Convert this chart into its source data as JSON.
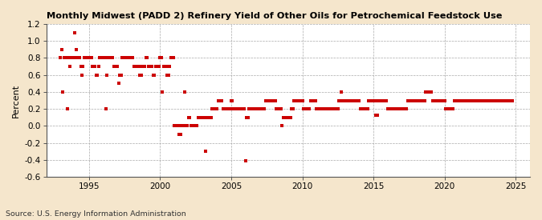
{
  "title": "Monthly Midwest (PADD 2) Refinery Yield of Other Oils for Petrochemical Feedstock Use",
  "ylabel": "Percent",
  "source": "Source: U.S. Energy Information Administration",
  "xlim": [
    1992.0,
    2026.0
  ],
  "ylim": [
    -0.6,
    1.2
  ],
  "yticks": [
    -0.6,
    -0.4,
    -0.2,
    0.0,
    0.2,
    0.4,
    0.6,
    0.8,
    1.0,
    1.2
  ],
  "xticks": [
    1995,
    2000,
    2005,
    2010,
    2015,
    2020,
    2025
  ],
  "fig_background_color": "#f5e6cc",
  "plot_bg_color": "#ffffff",
  "dot_color": "#cc0000",
  "dot_size": 6,
  "grid_color": "#aaaaaa",
  "data_points": [
    [
      1993.0,
      0.8
    ],
    [
      1993.08,
      0.9
    ],
    [
      1993.17,
      0.4
    ],
    [
      1993.25,
      0.8
    ],
    [
      1993.33,
      0.8
    ],
    [
      1993.42,
      0.8
    ],
    [
      1993.5,
      0.2
    ],
    [
      1993.58,
      0.8
    ],
    [
      1993.67,
      0.7
    ],
    [
      1993.75,
      0.8
    ],
    [
      1993.83,
      0.8
    ],
    [
      1993.92,
      0.8
    ],
    [
      1994.0,
      1.1
    ],
    [
      1994.08,
      0.9
    ],
    [
      1994.17,
      0.8
    ],
    [
      1994.25,
      0.8
    ],
    [
      1994.33,
      0.8
    ],
    [
      1994.42,
      0.7
    ],
    [
      1994.5,
      0.6
    ],
    [
      1994.58,
      0.7
    ],
    [
      1994.67,
      0.8
    ],
    [
      1994.75,
      0.8
    ],
    [
      1994.83,
      0.8
    ],
    [
      1994.92,
      0.8
    ],
    [
      1995.0,
      0.8
    ],
    [
      1995.08,
      0.8
    ],
    [
      1995.17,
      0.8
    ],
    [
      1995.25,
      0.7
    ],
    [
      1995.33,
      0.7
    ],
    [
      1995.42,
      0.7
    ],
    [
      1995.5,
      0.6
    ],
    [
      1995.58,
      0.6
    ],
    [
      1995.67,
      0.7
    ],
    [
      1995.75,
      0.8
    ],
    [
      1995.83,
      0.8
    ],
    [
      1995.92,
      0.8
    ],
    [
      1996.0,
      0.8
    ],
    [
      1996.08,
      0.8
    ],
    [
      1996.17,
      0.2
    ],
    [
      1996.25,
      0.6
    ],
    [
      1996.33,
      0.8
    ],
    [
      1996.42,
      0.8
    ],
    [
      1996.5,
      0.8
    ],
    [
      1996.58,
      0.8
    ],
    [
      1996.67,
      0.8
    ],
    [
      1996.75,
      0.7
    ],
    [
      1996.83,
      0.7
    ],
    [
      1996.92,
      0.7
    ],
    [
      1997.0,
      0.7
    ],
    [
      1997.08,
      0.5
    ],
    [
      1997.17,
      0.6
    ],
    [
      1997.25,
      0.6
    ],
    [
      1997.33,
      0.8
    ],
    [
      1997.42,
      0.8
    ],
    [
      1997.5,
      0.8
    ],
    [
      1997.58,
      0.8
    ],
    [
      1997.67,
      0.8
    ],
    [
      1997.75,
      0.8
    ],
    [
      1997.83,
      0.8
    ],
    [
      1997.92,
      0.8
    ],
    [
      1998.0,
      0.8
    ],
    [
      1998.08,
      0.8
    ],
    [
      1998.17,
      0.7
    ],
    [
      1998.25,
      0.7
    ],
    [
      1998.33,
      0.7
    ],
    [
      1998.42,
      0.7
    ],
    [
      1998.5,
      0.7
    ],
    [
      1998.58,
      0.6
    ],
    [
      1998.67,
      0.6
    ],
    [
      1998.75,
      0.7
    ],
    [
      1998.83,
      0.7
    ],
    [
      1998.92,
      0.7
    ],
    [
      1999.0,
      0.8
    ],
    [
      1999.08,
      0.8
    ],
    [
      1999.17,
      0.7
    ],
    [
      1999.25,
      0.7
    ],
    [
      1999.33,
      0.7
    ],
    [
      1999.42,
      0.7
    ],
    [
      1999.5,
      0.6
    ],
    [
      1999.58,
      0.6
    ],
    [
      1999.67,
      0.7
    ],
    [
      1999.75,
      0.7
    ],
    [
      1999.83,
      0.7
    ],
    [
      1999.92,
      0.7
    ],
    [
      2000.0,
      0.8
    ],
    [
      2000.08,
      0.8
    ],
    [
      2000.17,
      0.4
    ],
    [
      2000.25,
      0.7
    ],
    [
      2000.33,
      0.7
    ],
    [
      2000.42,
      0.7
    ],
    [
      2000.5,
      0.6
    ],
    [
      2000.58,
      0.6
    ],
    [
      2000.67,
      0.7
    ],
    [
      2000.75,
      0.8
    ],
    [
      2000.83,
      0.8
    ],
    [
      2000.92,
      0.8
    ],
    [
      2001.0,
      0.0
    ],
    [
      2001.08,
      0.0
    ],
    [
      2001.17,
      0.0
    ],
    [
      2001.25,
      0.0
    ],
    [
      2001.33,
      -0.1
    ],
    [
      2001.42,
      -0.1
    ],
    [
      2001.5,
      0.0
    ],
    [
      2001.58,
      0.0
    ],
    [
      2001.67,
      0.0
    ],
    [
      2001.75,
      0.4
    ],
    [
      2001.83,
      0.0
    ],
    [
      2001.92,
      0.0
    ],
    [
      2002.0,
      0.1
    ],
    [
      2002.08,
      0.1
    ],
    [
      2002.17,
      0.0
    ],
    [
      2002.25,
      0.0
    ],
    [
      2002.33,
      0.0
    ],
    [
      2002.42,
      0.0
    ],
    [
      2002.5,
      0.0
    ],
    [
      2002.58,
      0.0
    ],
    [
      2002.67,
      0.1
    ],
    [
      2002.75,
      0.1
    ],
    [
      2002.83,
      0.1
    ],
    [
      2002.92,
      0.1
    ],
    [
      2003.0,
      0.1
    ],
    [
      2003.08,
      0.1
    ],
    [
      2003.17,
      -0.3
    ],
    [
      2003.25,
      0.1
    ],
    [
      2003.33,
      0.1
    ],
    [
      2003.42,
      0.1
    ],
    [
      2003.5,
      0.1
    ],
    [
      2003.58,
      0.1
    ],
    [
      2003.67,
      0.2
    ],
    [
      2003.75,
      0.2
    ],
    [
      2003.83,
      0.2
    ],
    [
      2003.92,
      0.2
    ],
    [
      2004.0,
      0.2
    ],
    [
      2004.08,
      0.3
    ],
    [
      2004.17,
      0.3
    ],
    [
      2004.25,
      0.3
    ],
    [
      2004.33,
      0.3
    ],
    [
      2004.42,
      0.2
    ],
    [
      2004.5,
      0.2
    ],
    [
      2004.58,
      0.2
    ],
    [
      2004.67,
      0.2
    ],
    [
      2004.75,
      0.2
    ],
    [
      2004.83,
      0.2
    ],
    [
      2004.92,
      0.2
    ],
    [
      2005.0,
      0.3
    ],
    [
      2005.08,
      0.3
    ],
    [
      2005.17,
      0.2
    ],
    [
      2005.25,
      0.2
    ],
    [
      2005.33,
      0.2
    ],
    [
      2005.42,
      0.2
    ],
    [
      2005.5,
      0.2
    ],
    [
      2005.58,
      0.2
    ],
    [
      2005.67,
      0.2
    ],
    [
      2005.75,
      0.2
    ],
    [
      2005.83,
      0.2
    ],
    [
      2005.92,
      0.2
    ],
    [
      2006.0,
      -0.41
    ],
    [
      2006.08,
      0.1
    ],
    [
      2006.17,
      0.1
    ],
    [
      2006.25,
      0.2
    ],
    [
      2006.33,
      0.2
    ],
    [
      2006.42,
      0.2
    ],
    [
      2006.5,
      0.2
    ],
    [
      2006.58,
      0.2
    ],
    [
      2006.67,
      0.2
    ],
    [
      2006.75,
      0.2
    ],
    [
      2006.83,
      0.2
    ],
    [
      2006.92,
      0.2
    ],
    [
      2007.0,
      0.2
    ],
    [
      2007.08,
      0.2
    ],
    [
      2007.17,
      0.2
    ],
    [
      2007.25,
      0.2
    ],
    [
      2007.33,
      0.2
    ],
    [
      2007.42,
      0.3
    ],
    [
      2007.5,
      0.3
    ],
    [
      2007.58,
      0.3
    ],
    [
      2007.67,
      0.3
    ],
    [
      2007.75,
      0.3
    ],
    [
      2007.83,
      0.3
    ],
    [
      2007.92,
      0.3
    ],
    [
      2008.0,
      0.3
    ],
    [
      2008.08,
      0.3
    ],
    [
      2008.17,
      0.2
    ],
    [
      2008.25,
      0.2
    ],
    [
      2008.33,
      0.2
    ],
    [
      2008.42,
      0.2
    ],
    [
      2008.5,
      0.2
    ],
    [
      2008.58,
      0.0
    ],
    [
      2008.67,
      0.1
    ],
    [
      2008.75,
      0.1
    ],
    [
      2008.83,
      0.1
    ],
    [
      2008.92,
      0.1
    ],
    [
      2009.0,
      0.1
    ],
    [
      2009.08,
      0.1
    ],
    [
      2009.17,
      0.1
    ],
    [
      2009.25,
      0.2
    ],
    [
      2009.33,
      0.2
    ],
    [
      2009.42,
      0.3
    ],
    [
      2009.5,
      0.3
    ],
    [
      2009.58,
      0.3
    ],
    [
      2009.67,
      0.3
    ],
    [
      2009.75,
      0.3
    ],
    [
      2009.83,
      0.3
    ],
    [
      2009.92,
      0.3
    ],
    [
      2010.0,
      0.3
    ],
    [
      2010.08,
      0.2
    ],
    [
      2010.17,
      0.2
    ],
    [
      2010.25,
      0.2
    ],
    [
      2010.33,
      0.2
    ],
    [
      2010.42,
      0.2
    ],
    [
      2010.5,
      0.2
    ],
    [
      2010.58,
      0.3
    ],
    [
      2010.67,
      0.3
    ],
    [
      2010.75,
      0.3
    ],
    [
      2010.83,
      0.3
    ],
    [
      2010.92,
      0.3
    ],
    [
      2011.0,
      0.2
    ],
    [
      2011.08,
      0.2
    ],
    [
      2011.17,
      0.2
    ],
    [
      2011.25,
      0.2
    ],
    [
      2011.33,
      0.2
    ],
    [
      2011.42,
      0.2
    ],
    [
      2011.5,
      0.2
    ],
    [
      2011.58,
      0.2
    ],
    [
      2011.67,
      0.2
    ],
    [
      2011.75,
      0.2
    ],
    [
      2011.83,
      0.2
    ],
    [
      2011.92,
      0.2
    ],
    [
      2012.0,
      0.2
    ],
    [
      2012.08,
      0.2
    ],
    [
      2012.17,
      0.2
    ],
    [
      2012.25,
      0.2
    ],
    [
      2012.33,
      0.2
    ],
    [
      2012.42,
      0.2
    ],
    [
      2012.5,
      0.2
    ],
    [
      2012.58,
      0.3
    ],
    [
      2012.67,
      0.3
    ],
    [
      2012.75,
      0.4
    ],
    [
      2012.83,
      0.3
    ],
    [
      2012.92,
      0.3
    ],
    [
      2013.0,
      0.3
    ],
    [
      2013.08,
      0.3
    ],
    [
      2013.17,
      0.3
    ],
    [
      2013.25,
      0.3
    ],
    [
      2013.33,
      0.3
    ],
    [
      2013.42,
      0.3
    ],
    [
      2013.5,
      0.3
    ],
    [
      2013.58,
      0.3
    ],
    [
      2013.67,
      0.3
    ],
    [
      2013.75,
      0.3
    ],
    [
      2013.83,
      0.3
    ],
    [
      2013.92,
      0.3
    ],
    [
      2014.0,
      0.3
    ],
    [
      2014.08,
      0.2
    ],
    [
      2014.17,
      0.2
    ],
    [
      2014.25,
      0.2
    ],
    [
      2014.33,
      0.2
    ],
    [
      2014.42,
      0.2
    ],
    [
      2014.5,
      0.2
    ],
    [
      2014.58,
      0.2
    ],
    [
      2014.67,
      0.3
    ],
    [
      2014.75,
      0.3
    ],
    [
      2014.83,
      0.3
    ],
    [
      2014.92,
      0.3
    ],
    [
      2015.0,
      0.3
    ],
    [
      2015.08,
      0.3
    ],
    [
      2015.17,
      0.13
    ],
    [
      2015.25,
      0.13
    ],
    [
      2015.33,
      0.3
    ],
    [
      2015.42,
      0.3
    ],
    [
      2015.5,
      0.3
    ],
    [
      2015.58,
      0.3
    ],
    [
      2015.67,
      0.3
    ],
    [
      2015.75,
      0.3
    ],
    [
      2015.83,
      0.3
    ],
    [
      2015.92,
      0.3
    ],
    [
      2016.0,
      0.2
    ],
    [
      2016.08,
      0.2
    ],
    [
      2016.17,
      0.2
    ],
    [
      2016.25,
      0.2
    ],
    [
      2016.33,
      0.2
    ],
    [
      2016.42,
      0.2
    ],
    [
      2016.5,
      0.2
    ],
    [
      2016.58,
      0.2
    ],
    [
      2016.67,
      0.2
    ],
    [
      2016.75,
      0.2
    ],
    [
      2016.83,
      0.2
    ],
    [
      2016.92,
      0.2
    ],
    [
      2017.0,
      0.2
    ],
    [
      2017.08,
      0.2
    ],
    [
      2017.17,
      0.2
    ],
    [
      2017.25,
      0.2
    ],
    [
      2017.33,
      0.2
    ],
    [
      2017.42,
      0.3
    ],
    [
      2017.5,
      0.3
    ],
    [
      2017.58,
      0.3
    ],
    [
      2017.67,
      0.3
    ],
    [
      2017.75,
      0.3
    ],
    [
      2017.83,
      0.3
    ],
    [
      2017.92,
      0.3
    ],
    [
      2018.0,
      0.3
    ],
    [
      2018.08,
      0.3
    ],
    [
      2018.17,
      0.3
    ],
    [
      2018.25,
      0.3
    ],
    [
      2018.33,
      0.3
    ],
    [
      2018.42,
      0.3
    ],
    [
      2018.5,
      0.3
    ],
    [
      2018.58,
      0.3
    ],
    [
      2018.67,
      0.4
    ],
    [
      2018.75,
      0.4
    ],
    [
      2018.83,
      0.4
    ],
    [
      2018.92,
      0.4
    ],
    [
      2019.0,
      0.4
    ],
    [
      2019.08,
      0.4
    ],
    [
      2019.17,
      0.3
    ],
    [
      2019.25,
      0.3
    ],
    [
      2019.33,
      0.3
    ],
    [
      2019.42,
      0.3
    ],
    [
      2019.5,
      0.3
    ],
    [
      2019.58,
      0.3
    ],
    [
      2019.67,
      0.3
    ],
    [
      2019.75,
      0.3
    ],
    [
      2019.83,
      0.3
    ],
    [
      2019.92,
      0.3
    ],
    [
      2020.0,
      0.3
    ],
    [
      2020.08,
      0.2
    ],
    [
      2020.17,
      0.2
    ],
    [
      2020.25,
      0.2
    ],
    [
      2020.33,
      0.2
    ],
    [
      2020.42,
      0.2
    ],
    [
      2020.5,
      0.2
    ],
    [
      2020.58,
      0.2
    ],
    [
      2020.67,
      0.3
    ],
    [
      2020.75,
      0.3
    ],
    [
      2020.83,
      0.3
    ],
    [
      2020.92,
      0.3
    ],
    [
      2021.0,
      0.3
    ],
    [
      2021.08,
      0.3
    ],
    [
      2021.17,
      0.3
    ],
    [
      2021.25,
      0.3
    ],
    [
      2021.33,
      0.3
    ],
    [
      2021.42,
      0.3
    ],
    [
      2021.5,
      0.3
    ],
    [
      2021.58,
      0.3
    ],
    [
      2021.67,
      0.3
    ],
    [
      2021.75,
      0.3
    ],
    [
      2021.83,
      0.3
    ],
    [
      2021.92,
      0.3
    ],
    [
      2022.0,
      0.3
    ],
    [
      2022.08,
      0.3
    ],
    [
      2022.17,
      0.3
    ],
    [
      2022.25,
      0.3
    ],
    [
      2022.33,
      0.3
    ],
    [
      2022.42,
      0.3
    ],
    [
      2022.5,
      0.3
    ],
    [
      2022.58,
      0.3
    ],
    [
      2022.67,
      0.3
    ],
    [
      2022.75,
      0.3
    ],
    [
      2022.83,
      0.3
    ],
    [
      2022.92,
      0.3
    ],
    [
      2023.0,
      0.3
    ],
    [
      2023.08,
      0.3
    ],
    [
      2023.17,
      0.3
    ],
    [
      2023.25,
      0.3
    ],
    [
      2023.33,
      0.3
    ],
    [
      2023.42,
      0.3
    ],
    [
      2023.5,
      0.3
    ],
    [
      2023.58,
      0.3
    ],
    [
      2023.67,
      0.3
    ],
    [
      2023.75,
      0.3
    ],
    [
      2023.83,
      0.3
    ],
    [
      2023.92,
      0.3
    ],
    [
      2024.0,
      0.3
    ],
    [
      2024.08,
      0.3
    ],
    [
      2024.17,
      0.3
    ],
    [
      2024.25,
      0.3
    ],
    [
      2024.33,
      0.3
    ],
    [
      2024.42,
      0.3
    ],
    [
      2024.5,
      0.3
    ],
    [
      2024.58,
      0.3
    ],
    [
      2024.67,
      0.3
    ],
    [
      2024.75,
      0.3
    ]
  ]
}
